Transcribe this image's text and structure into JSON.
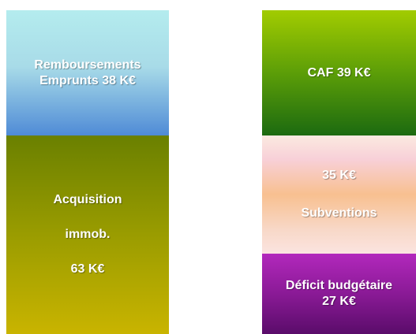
{
  "left": {
    "blocks": [
      {
        "lines": [
          "Remboursements",
          "Emprunts 38 K€"
        ]
      },
      {
        "lines": [
          "Acquisition",
          "immob.",
          "63 K€"
        ]
      }
    ]
  },
  "right": {
    "blocks": [
      {
        "lines": [
          "CAF 39 K€"
        ]
      },
      {
        "lines": [
          "35 K€",
          "Subventions"
        ]
      },
      {
        "lines": [
          "Déficit budgétaire",
          "27 K€"
        ]
      }
    ]
  }
}
